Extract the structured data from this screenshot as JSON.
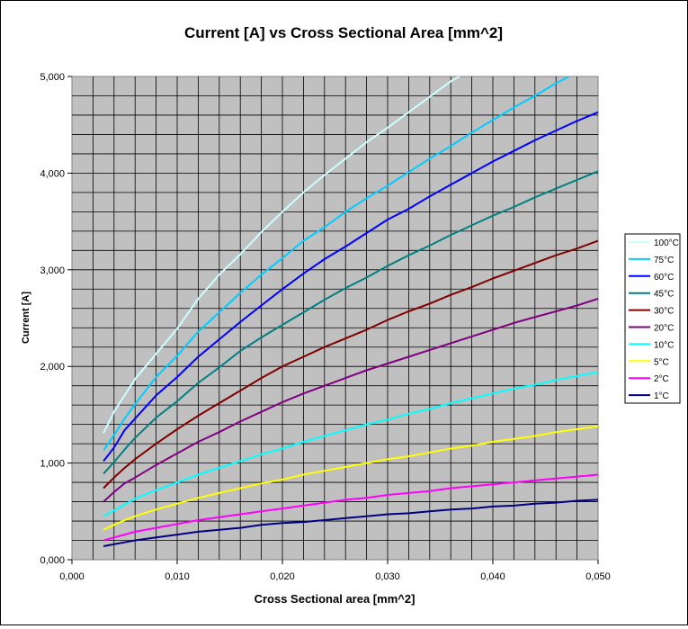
{
  "chart_data": {
    "type": "line",
    "title": "Current [A] vs Cross Sectional Area [mm^2]",
    "xlabel": "Cross Sectional area [mm^2]",
    "ylabel": "Current [A]",
    "xlim": [
      0,
      0.05
    ],
    "ylim": [
      0,
      5000
    ],
    "x_ticks": [
      0,
      0.01,
      0.02,
      0.03,
      0.04,
      0.05
    ],
    "x_tick_labels": [
      "0,000",
      "0,010",
      "0,020",
      "0,030",
      "0,040",
      "0,050"
    ],
    "y_ticks": [
      0,
      1000,
      2000,
      3000,
      4000,
      5000
    ],
    "y_tick_labels": [
      "0,000",
      "1,000",
      "2,000",
      "3,000",
      "4,000",
      "5,000"
    ],
    "grid": true,
    "plot_background": "#c0c0c0",
    "legend_position": "right",
    "x": [
      0.003,
      0.004,
      0.005,
      0.006,
      0.008,
      0.01,
      0.012,
      0.014,
      0.016,
      0.018,
      0.02,
      0.022,
      0.024,
      0.026,
      0.028,
      0.03,
      0.032,
      0.034,
      0.036,
      0.038,
      0.04,
      0.042,
      0.044,
      0.046,
      0.048,
      0.05
    ],
    "series": [
      {
        "name": "100°C",
        "color": "#ccffff",
        "values": [
          1310,
          1530,
          1700,
          1870,
          2130,
          2390,
          2700,
          2950,
          3160,
          3390,
          3600,
          3800,
          3980,
          4150,
          4320,
          4470,
          4630,
          4790,
          4950,
          5080,
          null,
          null,
          null,
          null,
          null,
          null
        ]
      },
      {
        "name": "75°C",
        "color": "#00ccff",
        "values": [
          1130,
          1290,
          1460,
          1610,
          1890,
          2110,
          2360,
          2560,
          2760,
          2950,
          3120,
          3300,
          3440,
          3600,
          3740,
          3870,
          4010,
          4150,
          4280,
          4420,
          4550,
          4680,
          4800,
          4930,
          5040,
          5150
        ]
      },
      {
        "name": "60°C",
        "color": "#0000ff",
        "values": [
          1020,
          1160,
          1340,
          1460,
          1700,
          1890,
          2100,
          2280,
          2460,
          2630,
          2800,
          2960,
          3110,
          3240,
          3380,
          3520,
          3630,
          3760,
          3880,
          4000,
          4120,
          4230,
          4340,
          4440,
          4540,
          4630
        ]
      },
      {
        "name": "45°C",
        "color": "#008080",
        "values": [
          890,
          1010,
          1140,
          1260,
          1470,
          1640,
          1830,
          1990,
          2160,
          2300,
          2430,
          2560,
          2690,
          2810,
          2920,
          3040,
          3150,
          3250,
          3360,
          3460,
          3560,
          3650,
          3750,
          3840,
          3930,
          4020
        ]
      },
      {
        "name": "30°C",
        "color": "#800000",
        "values": [
          740,
          850,
          950,
          1040,
          1200,
          1350,
          1490,
          1620,
          1750,
          1880,
          2000,
          2100,
          2200,
          2290,
          2380,
          2480,
          2570,
          2650,
          2740,
          2820,
          2910,
          2990,
          3070,
          3150,
          3220,
          3300
        ]
      },
      {
        "name": "20°C",
        "color": "#800080",
        "values": [
          600,
          700,
          790,
          850,
          980,
          1100,
          1220,
          1320,
          1430,
          1530,
          1630,
          1720,
          1800,
          1880,
          1960,
          2030,
          2100,
          2170,
          2240,
          2310,
          2380,
          2450,
          2510,
          2570,
          2630,
          2700
        ]
      },
      {
        "name": "10°C",
        "color": "#00ffff",
        "values": [
          450,
          510,
          570,
          630,
          720,
          800,
          880,
          950,
          1020,
          1090,
          1150,
          1220,
          1280,
          1340,
          1400,
          1450,
          1510,
          1560,
          1620,
          1670,
          1720,
          1770,
          1810,
          1860,
          1900,
          1940
        ]
      },
      {
        "name": "5°C",
        "color": "#ffff00",
        "values": [
          310,
          360,
          410,
          450,
          520,
          580,
          640,
          690,
          740,
          790,
          830,
          880,
          920,
          960,
          1000,
          1040,
          1070,
          1110,
          1150,
          1180,
          1220,
          1250,
          1280,
          1320,
          1350,
          1380
        ]
      },
      {
        "name": "2°C",
        "color": "#ff00ff",
        "values": [
          200,
          230,
          260,
          290,
          330,
          370,
          410,
          440,
          470,
          500,
          530,
          560,
          590,
          620,
          640,
          670,
          690,
          710,
          740,
          760,
          780,
          800,
          820,
          840,
          860,
          880
        ]
      },
      {
        "name": "1°C",
        "color": "#000080",
        "values": [
          140,
          160,
          180,
          200,
          230,
          260,
          290,
          310,
          330,
          360,
          380,
          390,
          410,
          430,
          450,
          470,
          480,
          500,
          520,
          530,
          550,
          560,
          580,
          590,
          610,
          620
        ]
      }
    ]
  }
}
